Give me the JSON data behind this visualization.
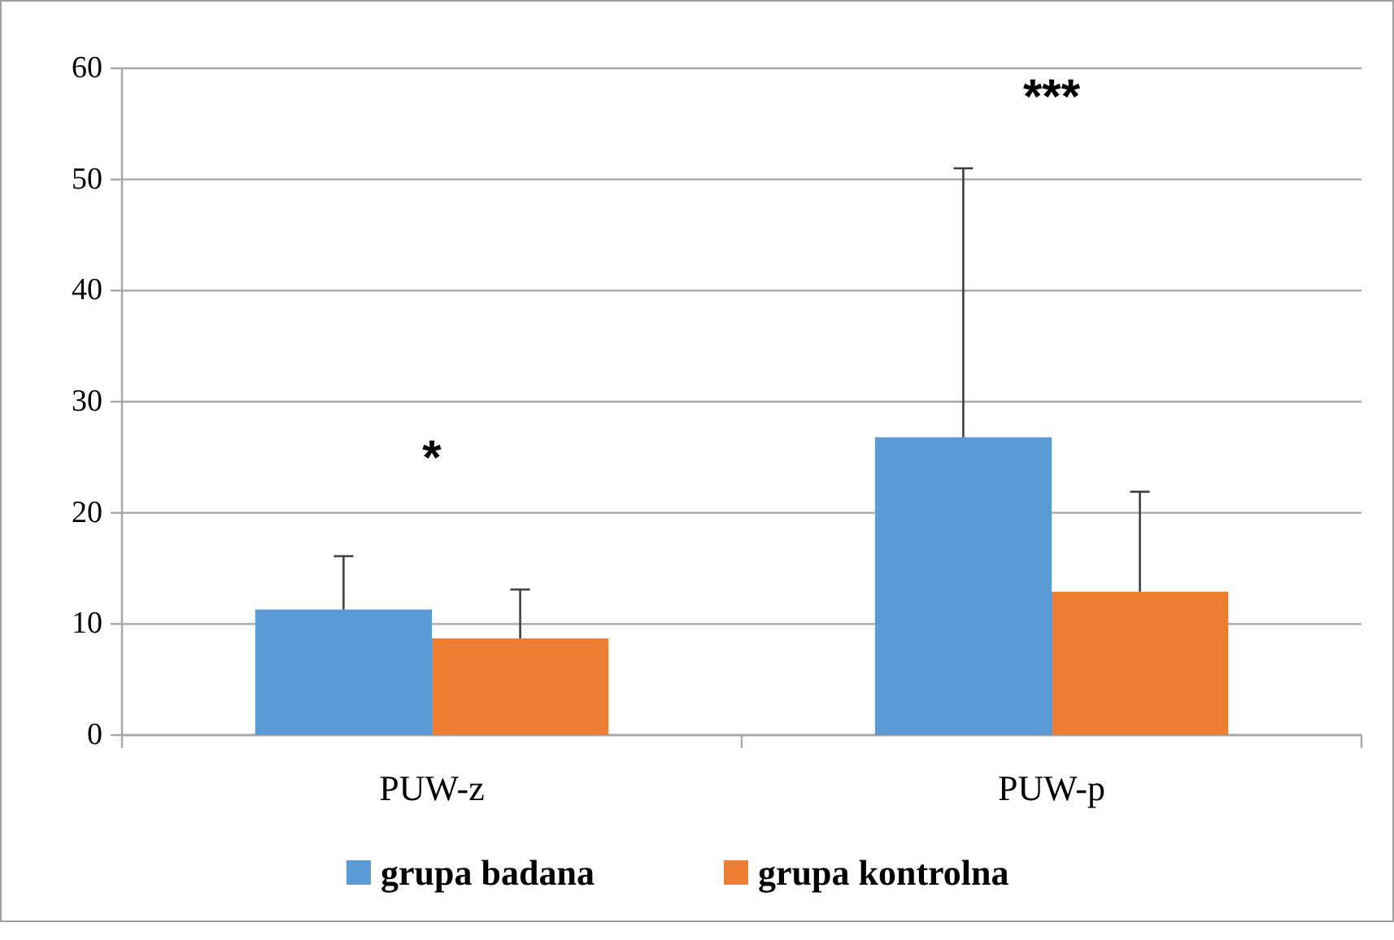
{
  "chart_data": {
    "type": "bar",
    "categories": [
      "PUW-z",
      "PUW-p"
    ],
    "series": [
      {
        "name": "grupa badana",
        "color": "#5b9bd5",
        "values": [
          11.3,
          26.8
        ],
        "errors": [
          [
            11.3,
            16.1
          ],
          [
            26.8,
            51.0
          ]
        ]
      },
      {
        "name": "grupa kontrolna",
        "color": "#ed7d31",
        "values": [
          8.7,
          12.9
        ],
        "errors": [
          [
            8.7,
            13.1
          ],
          [
            12.9,
            21.9
          ]
        ]
      }
    ],
    "ylim": [
      0,
      60
    ],
    "yticks": [
      0,
      10,
      20,
      30,
      40,
      50,
      60
    ],
    "grid": "y",
    "legend": "bottom",
    "annotations": [
      "*",
      "***"
    ]
  }
}
